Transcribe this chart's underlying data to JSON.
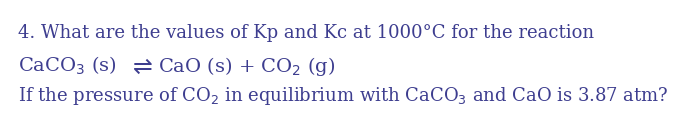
{
  "background_color": "#ffffff",
  "text_color": "#3d3d8f",
  "line1": "4. What are the values of Kp and Kc at 1000°C for the reaction",
  "line2_before_arrow": "CaCO$_3$ (s)",
  "line2_arrow": "⇌",
  "line2_after_arrow": "CaO (s) + CO$_2$ (g)",
  "line3": "If the pressure of CO$_2$ in equilibrium with CaCO$_3$ and CaO is 3.87 atm?",
  "fontsize": 13.0,
  "fontsize_eq": 14.0,
  "font_family": "DejaVu Serif"
}
